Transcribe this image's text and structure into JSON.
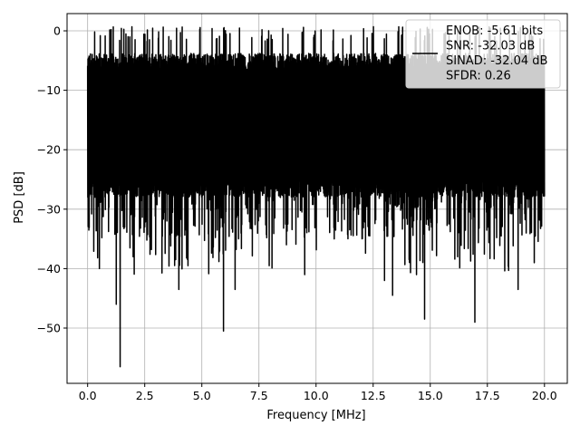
{
  "chart_data": {
    "type": "line",
    "title": "",
    "xlabel": "Frequency [MHz]",
    "ylabel": "PSD [dB]",
    "xlim": [
      -0.9,
      21.0
    ],
    "ylim": [
      -59.3,
      2.9
    ],
    "xticks": [
      0.0,
      2.5,
      5.0,
      7.5,
      10.0,
      12.5,
      15.0,
      17.5,
      20.0
    ],
    "xtick_labels": [
      "0.0",
      "2.5",
      "5.0",
      "7.5",
      "10.0",
      "12.5",
      "15.0",
      "17.5",
      "20.0"
    ],
    "yticks": [
      0,
      -10,
      -20,
      -30,
      -40,
      -50
    ],
    "ytick_labels": [
      "0",
      "−10",
      "−20",
      "−30",
      "−40",
      "−50"
    ],
    "grid": true,
    "legend": {
      "position": "top-right",
      "lines": [
        "ENOB: -5.61 bits",
        "SNR: -32.03 dB",
        "SINAD: -32.04 dB",
        "SFDR: 0.26"
      ]
    },
    "series": [
      {
        "color": "#000000",
        "x_range": [
          0.0,
          20.0
        ],
        "approx_upper_envelope_db": -5,
        "approx_lower_envelope_db": -25,
        "approx_max_db": -1.8,
        "deep_nulls": [
          {
            "x": 0.52,
            "y": -40.0
          },
          {
            "x": 1.25,
            "y": -46.0
          },
          {
            "x": 1.42,
            "y": -56.5
          },
          {
            "x": 1.85,
            "y": -36.5
          },
          {
            "x": 2.0,
            "y": -38.0
          },
          {
            "x": 3.85,
            "y": -38.5
          },
          {
            "x": 4.0,
            "y": -43.5
          },
          {
            "x": 4.4,
            "y": -39.5
          },
          {
            "x": 5.45,
            "y": -36.5
          },
          {
            "x": 5.95,
            "y": -50.5
          },
          {
            "x": 6.45,
            "y": -43.5
          },
          {
            "x": 7.95,
            "y": -39.5
          },
          {
            "x": 8.7,
            "y": -36.0
          },
          {
            "x": 9.5,
            "y": -41.0
          },
          {
            "x": 10.8,
            "y": -35.0
          },
          {
            "x": 13.0,
            "y": -42.0
          },
          {
            "x": 13.35,
            "y": -44.5
          },
          {
            "x": 14.4,
            "y": -41.0
          },
          {
            "x": 14.75,
            "y": -48.5
          },
          {
            "x": 16.2,
            "y": -38.0
          },
          {
            "x": 16.95,
            "y": -49.0
          },
          {
            "x": 18.85,
            "y": -43.5
          },
          {
            "x": 19.55,
            "y": -39.0
          }
        ]
      }
    ]
  }
}
